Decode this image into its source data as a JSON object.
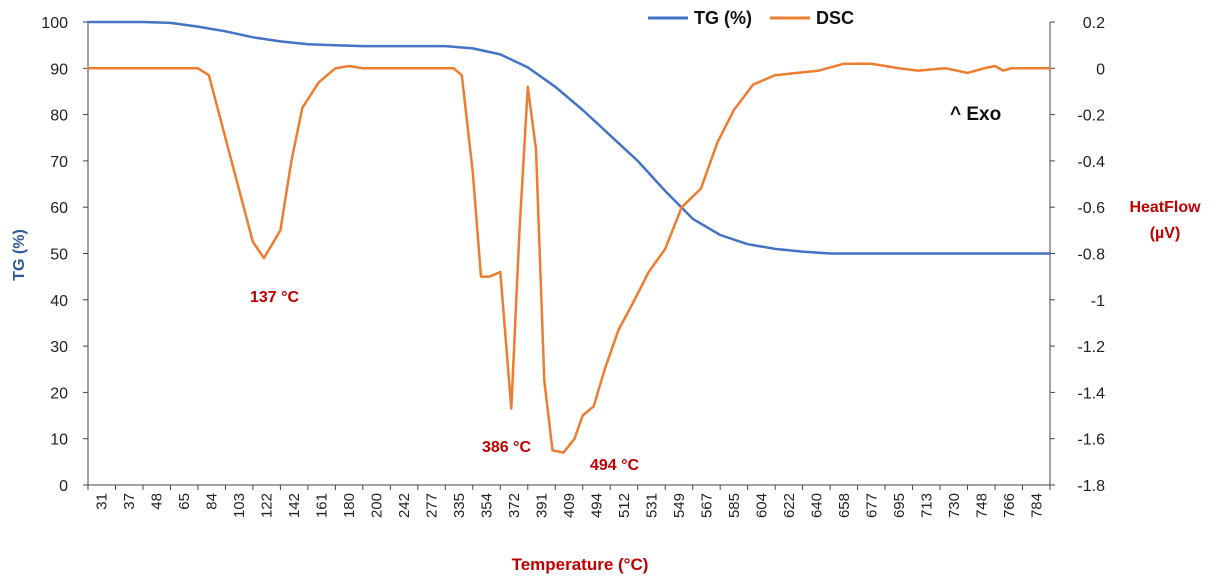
{
  "chart_data": {
    "type": "line",
    "title": "",
    "xlabel": "Temperature (°C)",
    "ylabel": "TG (%)",
    "y2label_line1": "HeatFlow",
    "y2label_line2": "(µV)",
    "x_tick_labels": [
      "31",
      "37",
      "48",
      "65",
      "84",
      "103",
      "122",
      "142",
      "161",
      "180",
      "200",
      "242",
      "277",
      "335",
      "354",
      "372",
      "391",
      "409",
      "494",
      "512",
      "531",
      "549",
      "567",
      "585",
      "604",
      "622",
      "640",
      "658",
      "677",
      "695",
      "713",
      "730",
      "748",
      "766",
      "784"
    ],
    "ylim": [
      0,
      100
    ],
    "y_ticks": [
      0,
      10,
      20,
      30,
      40,
      50,
      60,
      70,
      80,
      90,
      100
    ],
    "y2lim": [
      -1.8,
      0.2
    ],
    "y2_ticks": [
      "0.2",
      "0",
      "-0.2",
      "-0.4",
      "-0.6",
      "-0.8",
      "-1",
      "-1.2",
      "-1.4",
      "-1.6",
      "-1.8"
    ],
    "legend": {
      "position": "top-center",
      "tg_label": "TG (%)",
      "dsc_label": "DSC"
    },
    "exo_label": "^ Exo",
    "annotations": [
      "137 °C",
      "386 °C",
      "494 °C"
    ],
    "series": [
      {
        "name": "TG (%)",
        "axis": "left",
        "color": "#4472c4",
        "x_index": [
          0,
          1,
          2,
          3,
          4,
          5,
          6,
          7,
          8,
          9,
          10,
          11,
          12,
          13,
          14,
          15,
          16,
          17,
          18,
          19,
          20,
          21,
          22,
          23,
          24,
          25,
          26,
          27,
          28,
          29,
          30,
          31,
          32,
          33,
          34,
          35
        ],
        "values": [
          100,
          100,
          100,
          99.8,
          99,
          98,
          96.7,
          95.8,
          95.2,
          95,
          94.8,
          94.8,
          94.8,
          94.8,
          94.3,
          93,
          90.2,
          86,
          81,
          75.5,
          70,
          63.5,
          57.5,
          54,
          52,
          51,
          50.4,
          50,
          50,
          50,
          50,
          50,
          50,
          50,
          50,
          50
        ]
      },
      {
        "name": "DSC",
        "axis": "right",
        "color": "#ed7d31",
        "x_index": [
          0,
          3,
          4,
          4.4,
          5,
          6,
          6.4,
          7,
          7.4,
          7.8,
          8.4,
          9,
          9.5,
          10,
          11,
          12,
          13.3,
          13.6,
          14,
          14.3,
          14.6,
          15,
          15.4,
          15.7,
          16,
          16.3,
          16.6,
          16.9,
          17.3,
          17.7,
          18,
          18.4,
          18.8,
          19.3,
          19.8,
          20.4,
          21,
          21.6,
          22.3,
          22.9,
          23.5,
          24.2,
          25,
          25.8,
          26.6,
          27.5,
          28.5,
          29.5,
          30.2,
          31.2,
          32,
          32.6,
          33,
          33.3,
          33.6,
          34,
          34.5,
          35
        ],
        "values": [
          0,
          0,
          0,
          -0.03,
          -0.3,
          -0.75,
          -0.82,
          -0.7,
          -0.4,
          -0.17,
          -0.06,
          0,
          0.01,
          0,
          0,
          0,
          0,
          -0.03,
          -0.45,
          -0.9,
          -0.9,
          -0.88,
          -1.47,
          -0.7,
          -0.08,
          -0.35,
          -1.35,
          -1.65,
          -1.66,
          -1.6,
          -1.5,
          -1.46,
          -1.3,
          -1.13,
          -1.02,
          -0.88,
          -0.78,
          -0.6,
          -0.52,
          -0.32,
          -0.18,
          -0.07,
          -0.03,
          -0.02,
          -0.01,
          0.02,
          0.02,
          0,
          -0.01,
          0,
          -0.02,
          0,
          0.01,
          -0.01,
          0,
          0,
          0,
          0
        ]
      }
    ]
  }
}
